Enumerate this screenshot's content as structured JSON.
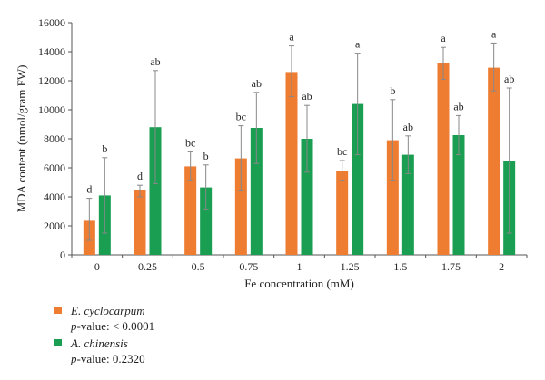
{
  "chart_data": {
    "type": "bar",
    "xlabel": "Fe concentration (mM)",
    "ylabel": "MDA content (nmol/gram FW)",
    "ylim": [
      0,
      16000
    ],
    "yticks": [
      0,
      2000,
      4000,
      6000,
      8000,
      10000,
      12000,
      14000,
      16000
    ],
    "categories": [
      "0",
      "0.25",
      "0.5",
      "0.75",
      "1",
      "1.25",
      "1.5",
      "1.75",
      "2"
    ],
    "series": [
      {
        "name": "E. cyclocarpum",
        "color": "#ee7d31",
        "values": [
          2350,
          4450,
          6100,
          6650,
          12600,
          5800,
          7900,
          13200,
          12900
        ],
        "error_upper": [
          3900,
          4800,
          7100,
          8900,
          14400,
          6500,
          10700,
          14300,
          14600
        ],
        "error_lower": [
          1000,
          4000,
          5100,
          4400,
          10900,
          5100,
          5100,
          12100,
          11300
        ],
        "labels": [
          "d",
          "d",
          "bc",
          "bc",
          "a",
          "bc",
          "b",
          "a",
          "a"
        ]
      },
      {
        "name": "A. chinensis",
        "color": "#1a9e51",
        "values": [
          4100,
          8800,
          4650,
          8750,
          8000,
          10400,
          6900,
          8250,
          6500
        ],
        "error_upper": [
          6700,
          12700,
          6200,
          11200,
          10300,
          13900,
          8200,
          9600,
          11500
        ],
        "error_lower": [
          1500,
          4900,
          3100,
          6300,
          5700,
          6900,
          5600,
          6900,
          1500
        ],
        "labels": [
          "b",
          "ab",
          "b",
          "ab",
          "ab",
          "a",
          "ab",
          "ab",
          "ab"
        ]
      }
    ],
    "legend": {
      "position": "bottom-left",
      "items": [
        {
          "name": "E. cyclocarpum",
          "p_label": "p",
          "p_value": "-value: < 0.0001",
          "color": "#ee7d31"
        },
        {
          "name": "A. chinensis",
          "p_label": "p",
          "p_value": "-value: 0.2320",
          "color": "#1a9e51"
        }
      ]
    }
  }
}
